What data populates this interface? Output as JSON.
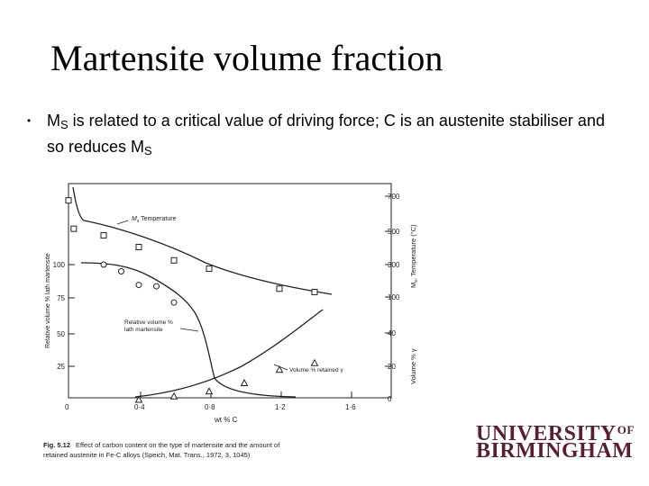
{
  "slide": {
    "title": "Martensite volume fraction",
    "bullet": {
      "part1": "M",
      "sub1": "S",
      "part2": " is related to a critical value of driving force; C is an austenite stabiliser and so reduces M",
      "sub2": "S"
    }
  },
  "figure": {
    "caption_label": "Fig. 5.12",
    "caption_line1": "Effect of carbon content on the type of martensite and the amount of",
    "caption_line2": "retained austenite in Fe-C alloys (Speich, Mat. Trans., 1972, 3, 1045)",
    "xlabel": "wt % C",
    "ylabel_left": "Relative volume % lath martensite",
    "ylabel_right_top": "M",
    "ylabel_right_top_sub": "s",
    "ylabel_right_top_rest": ", Temperature (°C)",
    "ylabel_right_bottom": "Volume % γ",
    "annotation_ms_prefix": "M",
    "annotation_ms_sub": "s",
    "annotation_ms_rest": " Temperature",
    "annotation_rel_line1": "Relative volume %",
    "annotation_rel_line2": "lath martensite",
    "annotation_ret": "Volume % retained γ",
    "x_ticks": [
      "0",
      "0·4",
      "0·8",
      "1·2",
      "1·6"
    ],
    "left_ticks": [
      "25",
      "50",
      "75",
      "100"
    ],
    "right_temp_ticks": [
      "100",
      "300",
      "500",
      "700"
    ],
    "right_vol_ticks": [
      "0",
      "20",
      "40"
    ]
  },
  "chart_data": {
    "type": "scatter",
    "xlabel": "wt % C",
    "xlim": [
      0,
      1.8
    ],
    "series": [
      {
        "name": "Ms Temperature",
        "axis": "right-temperature",
        "unit": "°C",
        "x": [
          0.0,
          0.03,
          0.2,
          0.4,
          0.6,
          0.8,
          1.2,
          1.4
        ],
        "y": [
          680,
          510,
          470,
          400,
          320,
          270,
          150,
          130
        ]
      },
      {
        "name": "Relative volume % lath martensite",
        "axis": "left",
        "unit": "%",
        "x": [
          0.2,
          0.3,
          0.4,
          0.5,
          0.6
        ],
        "y": [
          100,
          95,
          85,
          84,
          72
        ]
      },
      {
        "name": "Volume % retained γ",
        "axis": "right-volume",
        "unit": "%",
        "x": [
          0.4,
          0.6,
          0.8,
          1.0,
          1.2,
          1.4
        ],
        "y": [
          0,
          2,
          5,
          10,
          18,
          22
        ]
      }
    ]
  },
  "logo": {
    "line1": "UNIVERSITY",
    "of": "OF",
    "line2": "BIRMINGHAM"
  }
}
